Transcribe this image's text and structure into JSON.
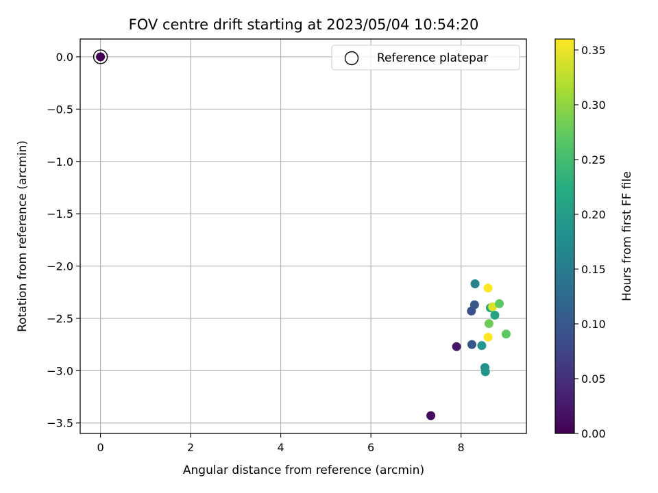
{
  "chart_data": {
    "type": "scatter",
    "title": "FOV centre drift starting at 2023/05/04 10:54:20",
    "xlabel": "Angular distance from reference (arcmin)",
    "ylabel": "Rotation from reference (arcmin)",
    "xlim": [
      -0.45,
      9.45
    ],
    "ylim": [
      -3.6,
      0.17
    ],
    "x_ticks": [
      0,
      2,
      4,
      6,
      8
    ],
    "x_tick_labels": [
      "0",
      "2",
      "4",
      "6",
      "8"
    ],
    "y_ticks": [
      0.0,
      -0.5,
      -1.0,
      -1.5,
      -2.0,
      -2.5,
      -3.0,
      -3.5
    ],
    "y_tick_labels": [
      "0.0",
      "−0.5",
      "−1.0",
      "−1.5",
      "−2.0",
      "−2.5",
      "−3.0",
      "−3.5"
    ],
    "grid": true,
    "legend": {
      "placement": "top-right",
      "entries": [
        "Reference platepar"
      ]
    },
    "colorbar": {
      "label": "Hours from first FF file",
      "colormap": "viridis",
      "range": [
        0.0,
        0.36
      ],
      "ticks": [
        0.0,
        0.05,
        0.1,
        0.15,
        0.2,
        0.25,
        0.3,
        0.35
      ],
      "tick_labels": [
        "0.00",
        "0.05",
        "0.10",
        "0.15",
        "0.20",
        "0.25",
        "0.30",
        "0.35"
      ]
    },
    "reference_point": {
      "x": 0,
      "y": 0,
      "c": 0.0
    },
    "points": [
      {
        "x": 7.33,
        "y": -3.43,
        "c": 0.01
      },
      {
        "x": 7.9,
        "y": -2.77,
        "c": 0.02
      },
      {
        "x": 8.24,
        "y": -2.75,
        "c": 0.1
      },
      {
        "x": 8.23,
        "y": -2.43,
        "c": 0.09
      },
      {
        "x": 8.3,
        "y": -2.37,
        "c": 0.1
      },
      {
        "x": 8.31,
        "y": -2.17,
        "c": 0.16
      },
      {
        "x": 8.46,
        "y": -2.76,
        "c": 0.19
      },
      {
        "x": 8.53,
        "y": -2.97,
        "c": 0.18
      },
      {
        "x": 8.54,
        "y": -3.01,
        "c": 0.19
      },
      {
        "x": 8.6,
        "y": -2.21,
        "c": 0.36
      },
      {
        "x": 8.6,
        "y": -2.68,
        "c": 0.36
      },
      {
        "x": 8.62,
        "y": -2.55,
        "c": 0.28
      },
      {
        "x": 8.65,
        "y": -2.4,
        "c": 0.22
      },
      {
        "x": 8.7,
        "y": -2.39,
        "c": 0.34
      },
      {
        "x": 8.75,
        "y": -2.47,
        "c": 0.21
      },
      {
        "x": 8.85,
        "y": -2.36,
        "c": 0.27
      },
      {
        "x": 9.0,
        "y": -2.65,
        "c": 0.27
      }
    ]
  }
}
